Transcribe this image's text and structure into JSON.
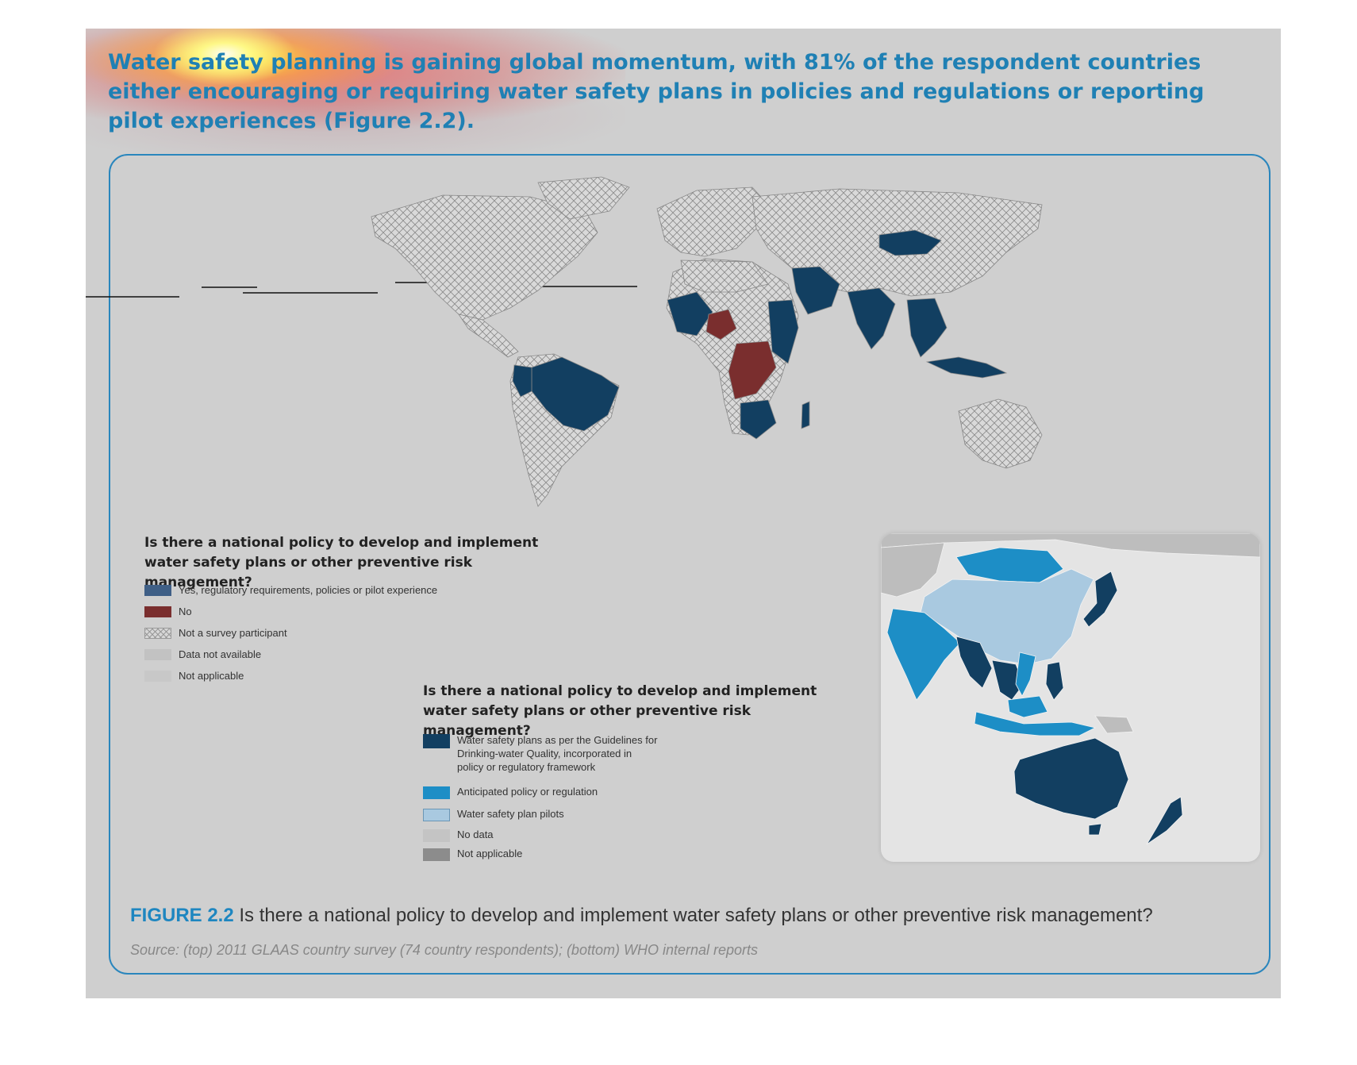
{
  "headline": {
    "text": "Water safety planning is gaining global momentum, with 81% of the respondent countries either encouraging or requiring water safety plans in policies and regulations or reporting pilot experiences (Figure 2.2)."
  },
  "colors": {
    "page_background": "#cfcfcf",
    "accent_blue": "#1f80b4",
    "dark_navy": "#123f61",
    "no_red": "#7a2e2e",
    "anticipated_blue": "#1d8ec6",
    "pilots_light_blue": "#a9c9e0",
    "no_data_gray": "#c4c4c4",
    "not_applicable_gray": "#8c8c8c"
  },
  "world_map": {
    "legend_title": "Is there a national policy to develop and implement water safety plans or other preventive risk management?",
    "legend": [
      {
        "label": "Yes, regulatory requirements, policies or pilot experience",
        "color": "#3f5f86"
      },
      {
        "label": "No",
        "color": "#7a2e2e"
      },
      {
        "label": "Not a survey participant",
        "pattern": "crosshatch"
      },
      {
        "label": "Data not available",
        "color": "#c2c2c2"
      },
      {
        "label": "Not applicable",
        "color": "#c8c8c8"
      }
    ]
  },
  "asia_pacific_map": {
    "legend_title": "Is there a national policy to develop and implement water safety plans or other preventive risk management?",
    "legend": [
      {
        "label": "Water safety plans as per the Guidelines for\nDrinking-water Quality, incorporated in\npolicy or regulatory framework",
        "color": "#123f61"
      },
      {
        "label": "Anticipated policy or regulation",
        "color": "#1d8ec6"
      },
      {
        "label": "Water safety plan pilots",
        "color": "#a9c9e0"
      },
      {
        "label": "No data",
        "color": "#c4c4c4"
      },
      {
        "label": "Not applicable",
        "color": "#8c8c8c"
      }
    ]
  },
  "figure": {
    "label": "FIGURE 2.2",
    "caption": "Is there a national policy to develop and implement water safety plans or other preventive risk management?",
    "source": "Source: (top) 2011 GLAAS country survey (74 country respondents); (bottom) WHO internal reports"
  }
}
